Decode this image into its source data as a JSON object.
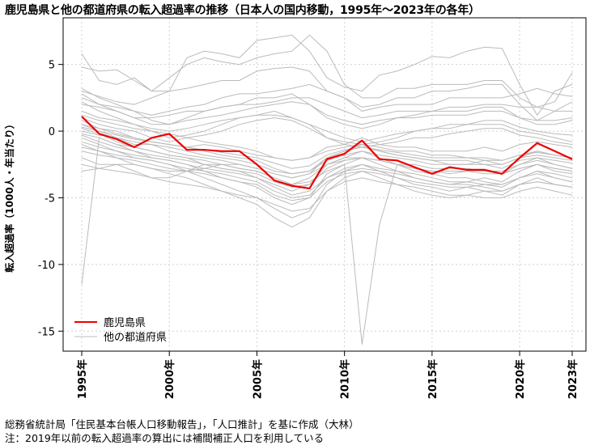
{
  "title": "鹿児島県と他の都道府県の転入超過率の推移（日本人の国内移動，1995年～2023年の各年）",
  "footer": {
    "source": "総務省統計局「住民基本台帳人口移動報告」，「人口推計」を基に作成（大林）",
    "note": "注：2019年以前の転入超過率の算出には補間補正人口を利用している"
  },
  "chart_data": {
    "type": "line",
    "title": "鹿児島県と他の都道府県の転入超過率の推移（日本人の国内移動，1995年～2023年の各年）",
    "xlabel": "",
    "ylabel": "転入超過率（1000人・年当たり）",
    "x": [
      1995,
      1996,
      1997,
      1998,
      1999,
      2000,
      2001,
      2002,
      2003,
      2004,
      2005,
      2006,
      2007,
      2008,
      2009,
      2010,
      2011,
      2012,
      2013,
      2014,
      2015,
      2016,
      2017,
      2018,
      2019,
      2020,
      2021,
      2022,
      2023
    ],
    "xticks": [
      1995,
      2000,
      2005,
      2010,
      2015,
      2020,
      2023
    ],
    "xtick_labels": [
      "1995年",
      "2000年",
      "2005年",
      "2010年",
      "2015年",
      "2020年",
      "2023年"
    ],
    "xlim": [
      1995,
      2023
    ],
    "yticks": [
      5,
      0,
      -5,
      -10,
      -15
    ],
    "ylim": [
      -16.5,
      8.5
    ],
    "grid": true,
    "legend": {
      "position": "bottom-left",
      "entries": [
        "鹿児島県",
        "他の都道府県"
      ]
    },
    "highlight": {
      "name": "鹿児島県",
      "color": "#ee0000",
      "values": [
        1.1,
        -0.2,
        -0.6,
        -1.2,
        -0.5,
        -0.2,
        -1.4,
        -1.4,
        -1.5,
        -1.5,
        -2.5,
        -3.7,
        -4.1,
        -4.3,
        -2.1,
        -1.7,
        -0.7,
        -2.1,
        -2.2,
        -2.7,
        -3.2,
        -2.7,
        -2.9,
        -2.9,
        -3.2,
        -2.0,
        -0.9,
        -1.5,
        -2.1
      ]
    },
    "others": {
      "name": "他の都道府県",
      "color": "#bbbbbb",
      "series": [
        [
          5.8,
          3.8,
          3.5,
          4.0,
          3.0,
          3.0,
          5.5,
          6.0,
          5.8,
          5.5,
          6.8,
          7.0,
          7.2,
          6.0,
          4.0,
          3.3,
          3.0,
          4.2,
          4.5,
          5.0,
          5.6,
          5.5,
          6.0,
          6.3,
          6.2,
          3.5,
          1.2,
          3.0,
          3.5
        ],
        [
          4.8,
          4.5,
          4.6,
          3.8,
          3.0,
          4.0,
          5.0,
          5.5,
          5.2,
          5.0,
          5.5,
          5.8,
          6.0,
          7.2,
          6.0,
          3.5,
          2.5,
          2.5,
          3.2,
          3.2,
          3.5,
          3.5,
          3.5,
          3.8,
          3.8,
          2.5,
          1.8,
          2.2,
          4.4
        ],
        [
          3.0,
          2.6,
          2.2,
          2.0,
          2.5,
          3.0,
          3.2,
          3.5,
          3.8,
          3.8,
          4.5,
          4.7,
          4.8,
          4.5,
          3.0,
          2.5,
          1.8,
          2.0,
          2.5,
          2.5,
          3.0,
          3.0,
          3.2,
          3.5,
          3.5,
          2.0,
          0.8,
          1.5,
          2.2
        ],
        [
          2.5,
          2.0,
          1.8,
          1.5,
          1.2,
          1.5,
          1.8,
          2.0,
          2.5,
          2.8,
          2.8,
          3.0,
          3.2,
          3.5,
          3.0,
          2.5,
          1.5,
          1.8,
          2.0,
          2.0,
          2.0,
          2.5,
          2.5,
          2.5,
          2.5,
          2.8,
          3.2,
          2.8,
          2.6
        ],
        [
          2.0,
          1.8,
          1.5,
          1.0,
          1.0,
          1.2,
          1.5,
          1.5,
          1.8,
          2.0,
          2.0,
          2.2,
          2.5,
          2.5,
          2.0,
          1.5,
          1.0,
          1.2,
          1.5,
          1.5,
          1.5,
          1.8,
          1.8,
          2.0,
          2.0,
          1.8,
          1.8,
          1.5,
          1.5
        ],
        [
          3.2,
          2.5,
          2.0,
          1.5,
          0.8,
          0.5,
          1.0,
          1.5,
          1.8,
          2.0,
          2.5,
          2.5,
          2.8,
          2.0,
          1.0,
          0.5,
          0.2,
          0.5,
          1.0,
          1.2,
          1.5,
          1.5,
          1.5,
          1.8,
          1.8,
          1.0,
          0.5,
          0.5,
          0.8
        ],
        [
          1.5,
          1.0,
          0.8,
          0.5,
          0.0,
          -0.5,
          -0.3,
          0.0,
          0.5,
          1.0,
          1.2,
          1.5,
          1.0,
          0.5,
          -0.5,
          -0.8,
          -1.0,
          -0.8,
          -0.5,
          0.0,
          0.2,
          0.5,
          0.5,
          0.8,
          0.8,
          0.3,
          0.0,
          -0.2,
          -0.3
        ],
        [
          1.0,
          0.5,
          0.2,
          0.0,
          -0.5,
          -0.8,
          -0.5,
          -0.3,
          0.0,
          0.5,
          0.8,
          1.0,
          0.8,
          0.2,
          -0.5,
          -1.0,
          -1.2,
          -1.0,
          -0.8,
          -0.5,
          -0.5,
          -0.2,
          0.0,
          0.2,
          0.2,
          -0.3,
          -0.5,
          -0.8,
          -1.0
        ],
        [
          0.8,
          0.2,
          0.0,
          -0.5,
          -0.8,
          -1.0,
          -1.2,
          -1.0,
          -1.2,
          -1.5,
          -1.8,
          -2.0,
          -2.2,
          -2.0,
          -1.2,
          -1.0,
          -0.5,
          -1.0,
          -1.2,
          -1.2,
          -1.5,
          -1.5,
          -1.5,
          -1.2,
          -1.5,
          -1.0,
          -0.8,
          -1.0,
          -1.2
        ],
        [
          0.5,
          0.0,
          -0.5,
          -1.0,
          -1.0,
          -1.5,
          -1.8,
          -2.0,
          -2.2,
          -2.5,
          -2.8,
          -3.2,
          -3.5,
          -3.2,
          -2.0,
          -1.5,
          -1.0,
          -1.5,
          -1.8,
          -2.0,
          -2.2,
          -2.5,
          -2.5,
          -2.2,
          -2.5,
          -2.0,
          -1.5,
          -1.8,
          -2.0
        ],
        [
          0.2,
          -0.2,
          -0.8,
          -1.2,
          -1.5,
          -1.8,
          -2.0,
          -2.5,
          -2.8,
          -3.0,
          -3.5,
          -4.0,
          -4.5,
          -4.0,
          -2.5,
          -2.0,
          -1.5,
          -2.0,
          -2.5,
          -2.8,
          -3.0,
          -3.2,
          -3.0,
          -3.0,
          -3.2,
          -2.5,
          -2.0,
          -2.5,
          -2.8
        ],
        [
          -0.2,
          -0.5,
          -1.0,
          -1.5,
          -2.0,
          -2.2,
          -2.5,
          -3.0,
          -3.5,
          -3.8,
          -4.2,
          -5.0,
          -5.5,
          -5.0,
          -3.2,
          -2.5,
          -2.0,
          -2.5,
          -3.0,
          -3.5,
          -3.8,
          -4.0,
          -3.8,
          -3.5,
          -3.8,
          -3.0,
          -2.5,
          -3.0,
          -3.2
        ],
        [
          -0.5,
          -1.0,
          -1.5,
          -2.0,
          -2.2,
          -2.5,
          -3.0,
          -3.5,
          -4.0,
          -4.5,
          -5.0,
          -5.8,
          -6.5,
          -6.0,
          -4.0,
          -3.0,
          -2.5,
          -3.0,
          -3.5,
          -4.0,
          -4.2,
          -4.5,
          -4.2,
          -4.0,
          -4.2,
          -3.5,
          -3.0,
          -3.5,
          -3.8
        ],
        [
          -1.0,
          -1.5,
          -2.0,
          -2.5,
          -2.8,
          -3.2,
          -3.5,
          -4.0,
          -4.5,
          -5.0,
          -5.5,
          -6.5,
          -7.2,
          -6.5,
          -4.5,
          -3.5,
          -3.0,
          -3.5,
          -4.0,
          -4.5,
          -4.8,
          -5.0,
          -4.8,
          -4.5,
          -4.8,
          -4.0,
          -3.5,
          -4.0,
          -4.2
        ],
        [
          -2.0,
          -2.5,
          -2.5,
          -3.0,
          -3.5,
          -3.5,
          -3.0,
          -2.5,
          -2.5,
          -2.8,
          -3.0,
          -3.5,
          -4.0,
          -3.5,
          -2.5,
          -2.0,
          -2.0,
          -2.2,
          -2.5,
          -2.8,
          -3.0,
          -3.0,
          -3.0,
          -3.0,
          -3.2,
          -2.8,
          -2.5,
          -2.8,
          -3.0
        ],
        [
          -0.8,
          -1.2,
          -1.5,
          -1.8,
          -2.0,
          -2.2,
          -2.5,
          -2.8,
          -3.0,
          -3.2,
          -3.5,
          -4.2,
          -4.8,
          -4.5,
          -3.5,
          -3.0,
          -2.8,
          -3.0,
          -3.2,
          -3.5,
          -3.8,
          -4.0,
          -4.0,
          -4.2,
          -4.5,
          -4.0,
          -3.8,
          -4.0,
          -4.2
        ],
        [
          0.0,
          -0.3,
          -0.5,
          -0.8,
          -1.0,
          -1.2,
          -1.5,
          -1.8,
          -2.0,
          -2.2,
          -2.5,
          -3.0,
          -3.2,
          -3.0,
          -2.2,
          -1.8,
          -1.5,
          -1.8,
          -2.0,
          -2.2,
          -2.5,
          -2.5,
          -2.5,
          -2.5,
          -2.8,
          -2.2,
          -2.0,
          -2.2,
          -2.4
        ],
        [
          1.2,
          0.8,
          0.5,
          0.2,
          0.0,
          -0.2,
          -0.5,
          -0.8,
          -1.0,
          -1.2,
          -1.5,
          -2.0,
          -2.2,
          -2.0,
          -1.5,
          -1.2,
          -1.0,
          -1.2,
          -1.5,
          -1.5,
          -1.8,
          -1.8,
          -2.0,
          -2.0,
          -2.2,
          -1.8,
          -1.5,
          -1.8,
          -2.0
        ],
        [
          -11.5,
          -0.5,
          -1.0,
          -1.2,
          -1.5,
          -1.8,
          -2.0,
          -2.2,
          -2.5,
          -2.8,
          -3.0,
          -3.5,
          -4.0,
          -3.8,
          -3.0,
          -2.5,
          -16.0,
          -7.0,
          -2.5,
          -3.0,
          -3.2,
          -3.5,
          -3.5,
          -3.8,
          -4.0,
          -3.5,
          -3.0,
          -3.2,
          -3.5
        ],
        [
          0.5,
          0.2,
          -0.2,
          -0.5,
          -0.8,
          -1.0,
          -1.2,
          -1.5,
          -1.8,
          -2.0,
          -2.2,
          -2.8,
          -3.2,
          -3.0,
          -2.0,
          -1.5,
          -1.2,
          -1.5,
          -1.8,
          -2.0,
          -2.2,
          -2.2,
          -2.2,
          -2.5,
          -2.5,
          -2.0,
          -1.8,
          -2.0,
          -2.2
        ],
        [
          -1.5,
          -1.8,
          -2.0,
          -2.2,
          -2.5,
          -2.8,
          -3.0,
          -3.2,
          -3.5,
          -3.8,
          -4.0,
          -4.8,
          -5.2,
          -5.0,
          -3.8,
          -3.2,
          -3.0,
          -3.2,
          -3.5,
          -3.8,
          -4.0,
          -4.2,
          -4.2,
          -4.5,
          -4.5,
          -4.0,
          -3.8,
          -4.0,
          -4.2
        ],
        [
          2.2,
          1.5,
          1.0,
          0.5,
          0.2,
          0.0,
          0.2,
          0.5,
          0.8,
          1.0,
          1.2,
          1.2,
          1.0,
          0.5,
          0.0,
          -0.5,
          -0.8,
          -0.5,
          -0.2,
          0.0,
          0.2,
          0.2,
          0.5,
          0.5,
          0.5,
          0.0,
          -0.2,
          -0.5,
          -0.8
        ],
        [
          -0.3,
          -0.8,
          -1.2,
          -1.5,
          -1.8,
          -2.0,
          -2.2,
          -2.5,
          -2.8,
          -3.0,
          -3.2,
          -3.8,
          -4.2,
          -4.0,
          -2.8,
          -2.2,
          -2.0,
          -2.2,
          -2.5,
          -2.8,
          -3.0,
          -3.0,
          -3.0,
          -3.2,
          -3.2,
          -2.8,
          -2.5,
          -2.8,
          -3.0
        ],
        [
          -3.0,
          -2.8,
          -2.5,
          -2.5,
          -2.8,
          -3.0,
          -3.0,
          -2.8,
          -2.5,
          -2.5,
          -2.8,
          -3.2,
          -3.5,
          -3.2,
          -2.5,
          -2.2,
          -2.0,
          -2.2,
          -2.5,
          -2.5,
          -2.8,
          -2.8,
          -2.8,
          -3.0,
          -3.0,
          -2.5,
          -2.2,
          -2.5,
          -2.8
        ],
        [
          2.8,
          2.0,
          1.5,
          1.0,
          0.5,
          0.5,
          0.8,
          1.0,
          1.2,
          1.5,
          1.8,
          2.0,
          2.2,
          2.0,
          1.2,
          0.8,
          0.5,
          0.8,
          1.0,
          1.0,
          1.2,
          1.2,
          1.2,
          1.5,
          1.5,
          1.0,
          0.8,
          0.8,
          1.0
        ],
        [
          -1.2,
          -1.5,
          -1.8,
          -2.0,
          -2.2,
          -2.5,
          -2.8,
          -3.0,
          -3.2,
          -3.5,
          -3.8,
          -4.5,
          -5.0,
          -4.8,
          -3.5,
          -2.8,
          -2.5,
          -2.8,
          -3.0,
          -3.2,
          -3.5,
          -3.8,
          -3.8,
          -4.0,
          -4.0,
          -3.5,
          -3.2,
          -3.5,
          -3.8
        ],
        [
          0.3,
          0.0,
          -0.3,
          -0.6,
          -0.8,
          -1.0,
          -1.2,
          -1.4,
          -1.6,
          -1.8,
          -2.0,
          -2.4,
          -2.8,
          -2.6,
          -1.8,
          -1.4,
          -1.2,
          -1.4,
          -1.6,
          -1.8,
          -2.0,
          -2.0,
          -2.0,
          -2.2,
          -2.2,
          -1.8,
          -1.6,
          -1.8,
          -2.0
        ],
        [
          -2.5,
          -2.8,
          -3.0,
          -3.2,
          -3.5,
          -3.8,
          -4.0,
          -4.2,
          -4.5,
          -4.8,
          -5.0,
          -5.5,
          -6.0,
          -5.8,
          -4.5,
          -3.8,
          -3.5,
          -3.8,
          -4.0,
          -4.2,
          -4.5,
          -4.8,
          -4.8,
          -5.0,
          -5.0,
          -4.5,
          -4.2,
          -4.5,
          -4.8
        ]
      ]
    }
  }
}
